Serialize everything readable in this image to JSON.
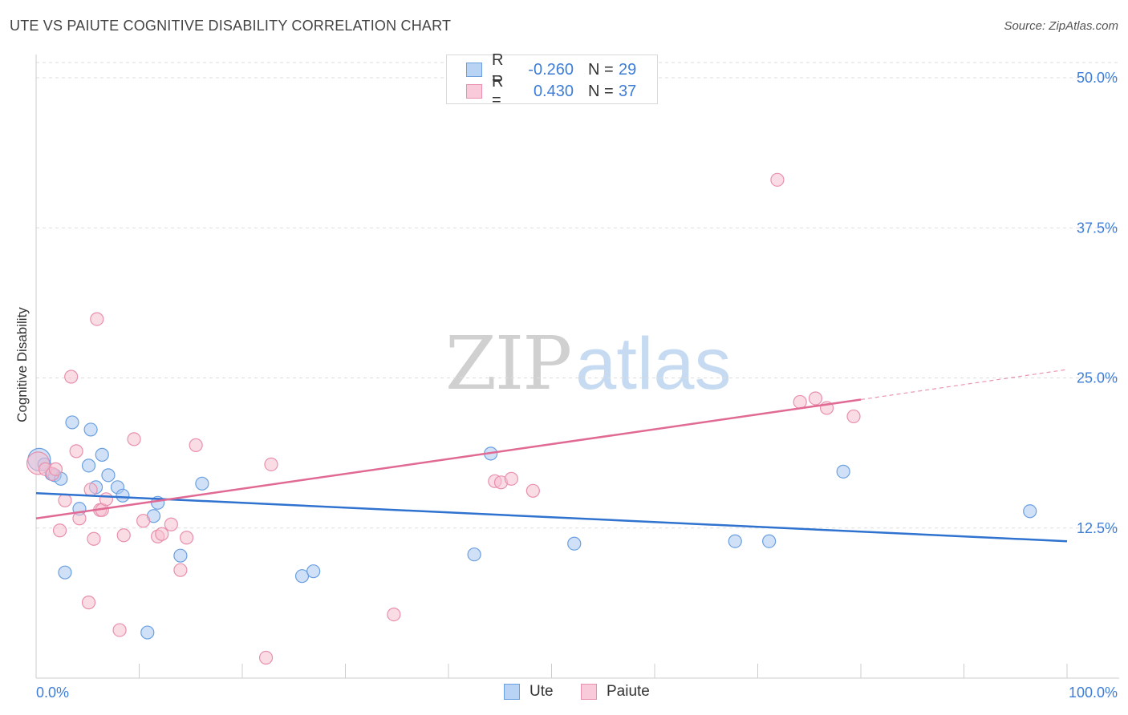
{
  "header": {
    "title": "UTE VS PAIUTE COGNITIVE DISABILITY CORRELATION CHART",
    "source": "Source: ZipAtlas.com"
  },
  "legend": {
    "rows": [
      {
        "r_label": "R =",
        "r_value": "-0.260",
        "n_label": "N =",
        "n_value": "29"
      },
      {
        "r_label": "R =",
        "r_value": "0.430",
        "n_label": "N =",
        "n_value": "37"
      }
    ]
  },
  "bottom_legend": {
    "ute": "Ute",
    "paiute": "Paiute"
  },
  "watermark": {
    "zip": "ZIP",
    "atlas": "atlas"
  },
  "colors": {
    "ute_fill": "#a9c8f0",
    "ute_stroke": "#6a9fe0",
    "ute_line": "#2f72cf",
    "paiute_fill": "#f6bfd0",
    "paiute_stroke": "#e890ad",
    "paiute_line": "#e06a93",
    "grid": "#dddddd",
    "axis_text": "#3d7dd8"
  },
  "chart_data": {
    "type": "scatter",
    "title": "UTE VS PAIUTE COGNITIVE DISABILITY CORRELATION CHART",
    "xlabel": "",
    "ylabel": "Cognitive Disability",
    "xlim": [
      0,
      100
    ],
    "ylim": [
      0,
      50
    ],
    "x_tick_labels": [
      "0.0%",
      "100.0%"
    ],
    "y_ticks": [
      12.5,
      25.0,
      37.5,
      50.0
    ],
    "y_tick_labels": [
      "12.5%",
      "25.0%",
      "37.5%",
      "50.0%"
    ],
    "grid": true,
    "legend_position": "top-center",
    "series": [
      {
        "name": "Ute",
        "r": -0.26,
        "n": 29,
        "trend": {
          "x": [
            0,
            100
          ],
          "y": [
            15.4,
            11.4
          ]
        },
        "points": [
          {
            "x": 0.3,
            "y": 18.2,
            "big": true
          },
          {
            "x": 0.8,
            "y": 17.8
          },
          {
            "x": 1.5,
            "y": 17.0
          },
          {
            "x": 1.8,
            "y": 16.9
          },
          {
            "x": 2.4,
            "y": 16.6
          },
          {
            "x": 2.8,
            "y": 8.8
          },
          {
            "x": 3.5,
            "y": 21.3
          },
          {
            "x": 4.2,
            "y": 14.1
          },
          {
            "x": 5.1,
            "y": 17.7
          },
          {
            "x": 5.3,
            "y": 20.7
          },
          {
            "x": 5.8,
            "y": 15.9
          },
          {
            "x": 6.4,
            "y": 18.6
          },
          {
            "x": 7.0,
            "y": 16.9
          },
          {
            "x": 7.9,
            "y": 15.9
          },
          {
            "x": 8.4,
            "y": 15.2
          },
          {
            "x": 10.8,
            "y": 3.8
          },
          {
            "x": 11.4,
            "y": 13.5
          },
          {
            "x": 11.8,
            "y": 14.6
          },
          {
            "x": 14.0,
            "y": 10.2
          },
          {
            "x": 16.1,
            "y": 16.2
          },
          {
            "x": 25.8,
            "y": 8.5
          },
          {
            "x": 26.9,
            "y": 8.9
          },
          {
            "x": 42.5,
            "y": 10.3
          },
          {
            "x": 44.1,
            "y": 18.7
          },
          {
            "x": 52.2,
            "y": 11.2
          },
          {
            "x": 67.8,
            "y": 11.4
          },
          {
            "x": 71.1,
            "y": 11.4
          },
          {
            "x": 78.3,
            "y": 17.2
          },
          {
            "x": 96.4,
            "y": 13.9
          }
        ]
      },
      {
        "name": "Paiute",
        "r": 0.43,
        "n": 37,
        "trend": {
          "x": [
            0,
            80
          ],
          "y": [
            13.3,
            23.2
          ]
        },
        "trend_dashed": {
          "x": [
            80,
            100
          ],
          "y": [
            23.2,
            25.7
          ]
        },
        "points": [
          {
            "x": 0.2,
            "y": 17.9,
            "big": true
          },
          {
            "x": 0.9,
            "y": 17.4
          },
          {
            "x": 1.6,
            "y": 17.0
          },
          {
            "x": 1.9,
            "y": 17.4
          },
          {
            "x": 2.3,
            "y": 12.3
          },
          {
            "x": 2.8,
            "y": 14.8
          },
          {
            "x": 3.4,
            "y": 25.1
          },
          {
            "x": 3.9,
            "y": 18.9
          },
          {
            "x": 4.2,
            "y": 13.3
          },
          {
            "x": 5.1,
            "y": 6.3
          },
          {
            "x": 5.3,
            "y": 15.7
          },
          {
            "x": 5.6,
            "y": 11.6
          },
          {
            "x": 5.9,
            "y": 29.9
          },
          {
            "x": 6.2,
            "y": 14.0
          },
          {
            "x": 6.4,
            "y": 14.0
          },
          {
            "x": 6.8,
            "y": 14.9
          },
          {
            "x": 8.1,
            "y": 4.0
          },
          {
            "x": 8.5,
            "y": 11.9
          },
          {
            "x": 9.5,
            "y": 19.9
          },
          {
            "x": 10.4,
            "y": 13.1
          },
          {
            "x": 11.8,
            "y": 11.8
          },
          {
            "x": 12.2,
            "y": 12.0
          },
          {
            "x": 13.1,
            "y": 12.8
          },
          {
            "x": 14.0,
            "y": 9.0
          },
          {
            "x": 14.6,
            "y": 11.7
          },
          {
            "x": 15.5,
            "y": 19.4
          },
          {
            "x": 22.3,
            "y": 1.7
          },
          {
            "x": 22.8,
            "y": 17.8
          },
          {
            "x": 34.7,
            "y": 5.3
          },
          {
            "x": 44.5,
            "y": 16.4
          },
          {
            "x": 45.1,
            "y": 16.3
          },
          {
            "x": 46.1,
            "y": 16.6
          },
          {
            "x": 48.2,
            "y": 15.6
          },
          {
            "x": 71.9,
            "y": 41.5
          },
          {
            "x": 74.1,
            "y": 23.0
          },
          {
            "x": 75.6,
            "y": 23.3
          },
          {
            "x": 76.7,
            "y": 22.5
          },
          {
            "x": 79.3,
            "y": 21.8
          }
        ]
      }
    ]
  }
}
